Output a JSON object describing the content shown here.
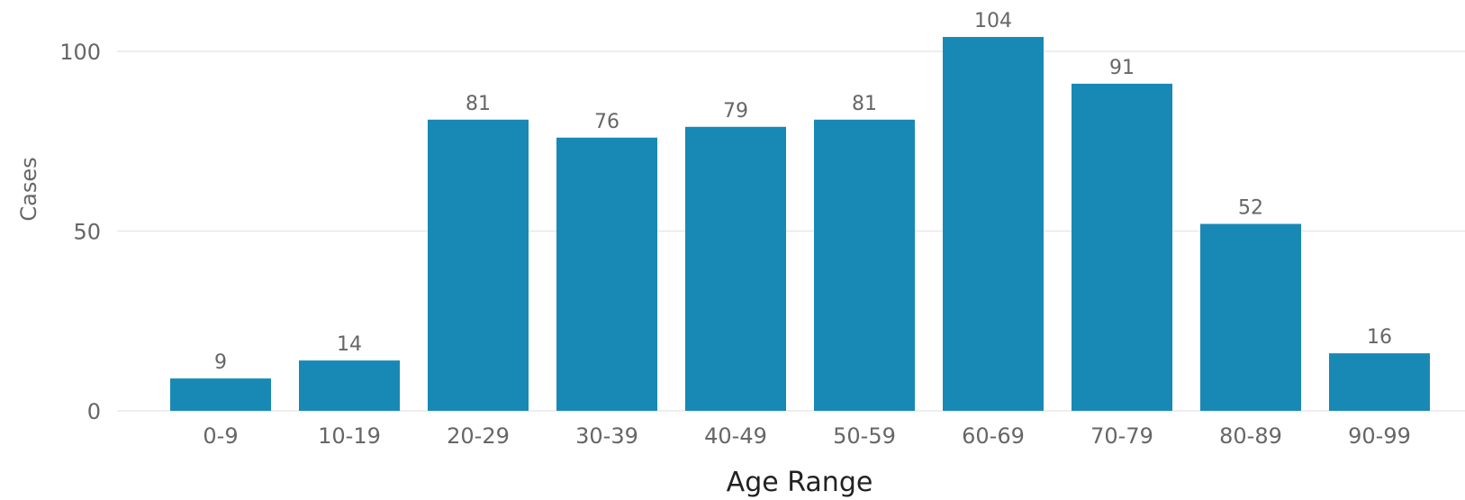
{
  "chart_data": {
    "type": "bar",
    "categories": [
      "0-9",
      "10-19",
      "20-29",
      "30-39",
      "40-49",
      "50-59",
      "60-69",
      "70-79",
      "80-89",
      "90-99"
    ],
    "series": [
      {
        "values": [
          9,
          14,
          81,
          76,
          79,
          81,
          104,
          91,
          52,
          16
        ]
      }
    ],
    "data_labels": [
      "9",
      "14",
      "81",
      "76",
      "79",
      "81",
      "104",
      "91",
      "52",
      "16"
    ],
    "xlabel": "Age Range",
    "ylabel": "Cases",
    "ylim": [
      0,
      100
    ],
    "yticks": [
      "0",
      "50",
      "100"
    ],
    "grid": true,
    "bar_color": "#1889b5"
  }
}
